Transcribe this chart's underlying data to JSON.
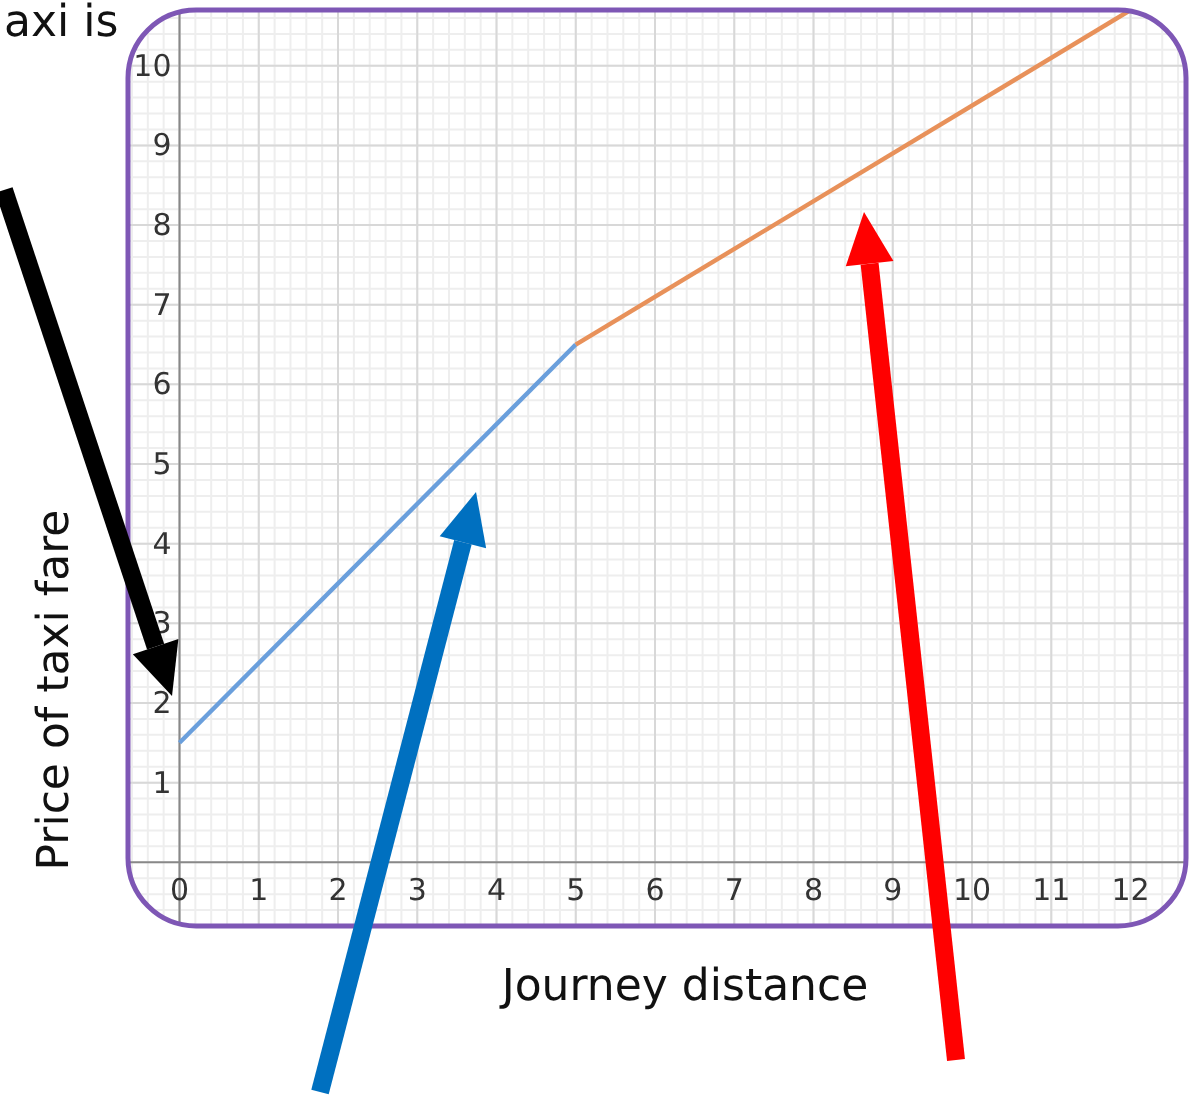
{
  "chart_data": {
    "type": "line",
    "xlabel": "Journey distance",
    "ylabel": "Price of taxi fare",
    "annotations": [
      "axi is"
    ],
    "series": [
      {
        "color": "#6a9fdc",
        "x": [
          0,
          5
        ],
        "values": [
          1.5,
          6.5
        ]
      },
      {
        "color": "#e8915a",
        "x": [
          5,
          12
        ],
        "values": [
          6.5,
          10.7
        ]
      }
    ],
    "xlim": [
      -0.65,
      12.7
    ],
    "ylim": [
      -0.8,
      10.7
    ],
    "xticks": [
      0,
      1,
      2,
      3,
      4,
      5,
      6,
      7,
      8,
      9,
      10,
      11,
      12
    ],
    "yticks": [
      1,
      2,
      3,
      4,
      5,
      6,
      7,
      8,
      9,
      10
    ],
    "grid": true,
    "marker": "none",
    "line_style": "solid"
  }
}
